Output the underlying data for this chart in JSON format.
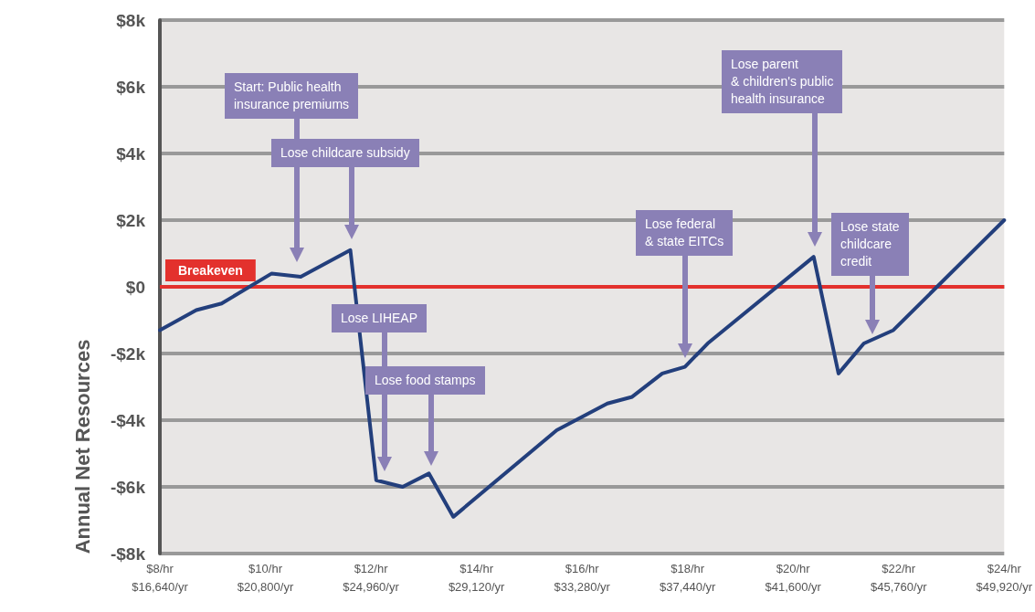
{
  "chart_data": {
    "type": "line",
    "ylabel": "Annual Net Resources",
    "x": [
      8,
      8.69,
      9.17,
      10.12,
      10.67,
      11.61,
      12.1,
      12.6,
      13.1,
      13.56,
      15.52,
      16.48,
      16.95,
      17.52,
      17.95,
      18.38,
      20.39,
      20.86,
      21.34,
      21.9,
      24
    ],
    "series": [
      {
        "color": "#233f7c",
        "values": [
          -1.3,
          -0.7,
          -0.5,
          0.4,
          0.3,
          1.1,
          -5.8,
          -6.0,
          -5.6,
          -6.9,
          -4.3,
          -3.5,
          -3.3,
          -2.6,
          -2.4,
          -1.7,
          0.9,
          -2.6,
          -1.7,
          -1.3,
          2.0
        ]
      }
    ],
    "xlim": [
      8,
      24
    ],
    "xticks": [
      {
        "value": 8,
        "label": "$8/hr"
      },
      {
        "value": 10,
        "label": "$10/hr"
      },
      {
        "value": 12,
        "label": "$12/hr"
      },
      {
        "value": 14,
        "label": "$14/hr"
      },
      {
        "value": 16,
        "label": "$16/hr"
      },
      {
        "value": 18,
        "label": "$18/hr"
      },
      {
        "value": 20,
        "label": "$20/hr"
      },
      {
        "value": 22,
        "label": "$22/hr"
      },
      {
        "value": 24,
        "label": "$24/hr"
      }
    ],
    "x2lim": [
      16640,
      49920
    ],
    "x2ticks": [
      {
        "value": 16640,
        "label": "$16,640/yr"
      },
      {
        "value": 20800,
        "label": "$20,800/yr"
      },
      {
        "value": 24960,
        "label": "$24,960/yr"
      },
      {
        "value": 29120,
        "label": "$29,120/yr"
      },
      {
        "value": 33280,
        "label": "$33,280/yr"
      },
      {
        "value": 37440,
        "label": "$37,440/yr"
      },
      {
        "value": 41600,
        "label": "$41,600/yr"
      },
      {
        "value": 45760,
        "label": "$45,760/yr"
      },
      {
        "value": 49920,
        "label": "$49,920/yr"
      }
    ],
    "ylim": [
      -8,
      8
    ],
    "yticks": [
      {
        "value": -8,
        "label": "-$8k"
      },
      {
        "value": -6,
        "label": "-$6k"
      },
      {
        "value": -4,
        "label": "-$4k"
      },
      {
        "value": -2,
        "label": "-$2k"
      },
      {
        "value": 0,
        "label": "$0"
      },
      {
        "value": 2,
        "label": "$2k"
      },
      {
        "value": 4,
        "label": "$4k"
      },
      {
        "value": 6,
        "label": "$6k"
      },
      {
        "value": 8,
        "label": "$8k"
      }
    ],
    "grid": "y",
    "marker": "none",
    "line_style": "solid",
    "ref_lines": [
      {
        "axis": "y",
        "value": 0,
        "label": "Breakeven",
        "color": "#e3312d"
      }
    ],
    "annotations": [
      "Start: Public health\ninsurance premiums",
      "Lose childcare subsidy",
      "Lose LIHEAP",
      "Lose food stamps",
      "Lose federal\n& state EITCs",
      "Lose parent\n& children's public\nhealth insurance",
      "Lose state\nchildcare\ncredit"
    ]
  }
}
